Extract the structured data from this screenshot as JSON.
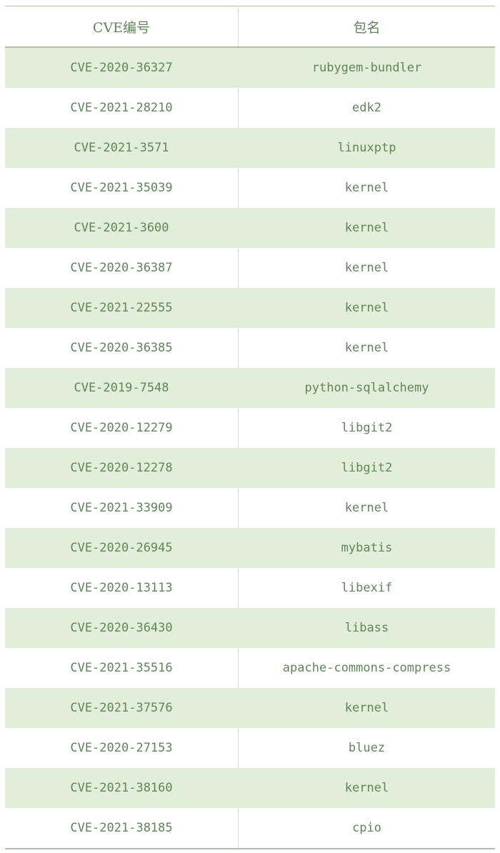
{
  "table": {
    "headers": [
      "CVE编号",
      "包名"
    ],
    "rows": [
      [
        "CVE-2020-36327",
        "rubygem-bundler"
      ],
      [
        "CVE-2021-28210",
        "edk2"
      ],
      [
        "CVE-2021-3571",
        "linuxptp"
      ],
      [
        "CVE-2021-35039",
        "kernel"
      ],
      [
        "CVE-2021-3600",
        "kernel"
      ],
      [
        "CVE-2020-36387",
        "kernel"
      ],
      [
        "CVE-2021-22555",
        "kernel"
      ],
      [
        "CVE-2020-36385",
        "kernel"
      ],
      [
        "CVE-2019-7548",
        "python-sqlalchemy"
      ],
      [
        "CVE-2020-12279",
        "libgit2"
      ],
      [
        "CVE-2020-12278",
        "libgit2"
      ],
      [
        "CVE-2021-33909",
        "kernel"
      ],
      [
        "CVE-2020-26945",
        "mybatis"
      ],
      [
        "CVE-2020-13113",
        "libexif"
      ],
      [
        "CVE-2020-36430",
        "libass"
      ],
      [
        "CVE-2021-35516",
        "apache-commons-compress"
      ],
      [
        "CVE-2021-37576",
        "kernel"
      ],
      [
        "CVE-2020-27153",
        "bluez"
      ],
      [
        "CVE-2021-38160",
        "kernel"
      ],
      [
        "CVE-2021-38185",
        "cpio"
      ]
    ]
  },
  "colors": {
    "text": "#5e8659",
    "stripe": "#e2eed9",
    "border": "#a9c49f"
  }
}
